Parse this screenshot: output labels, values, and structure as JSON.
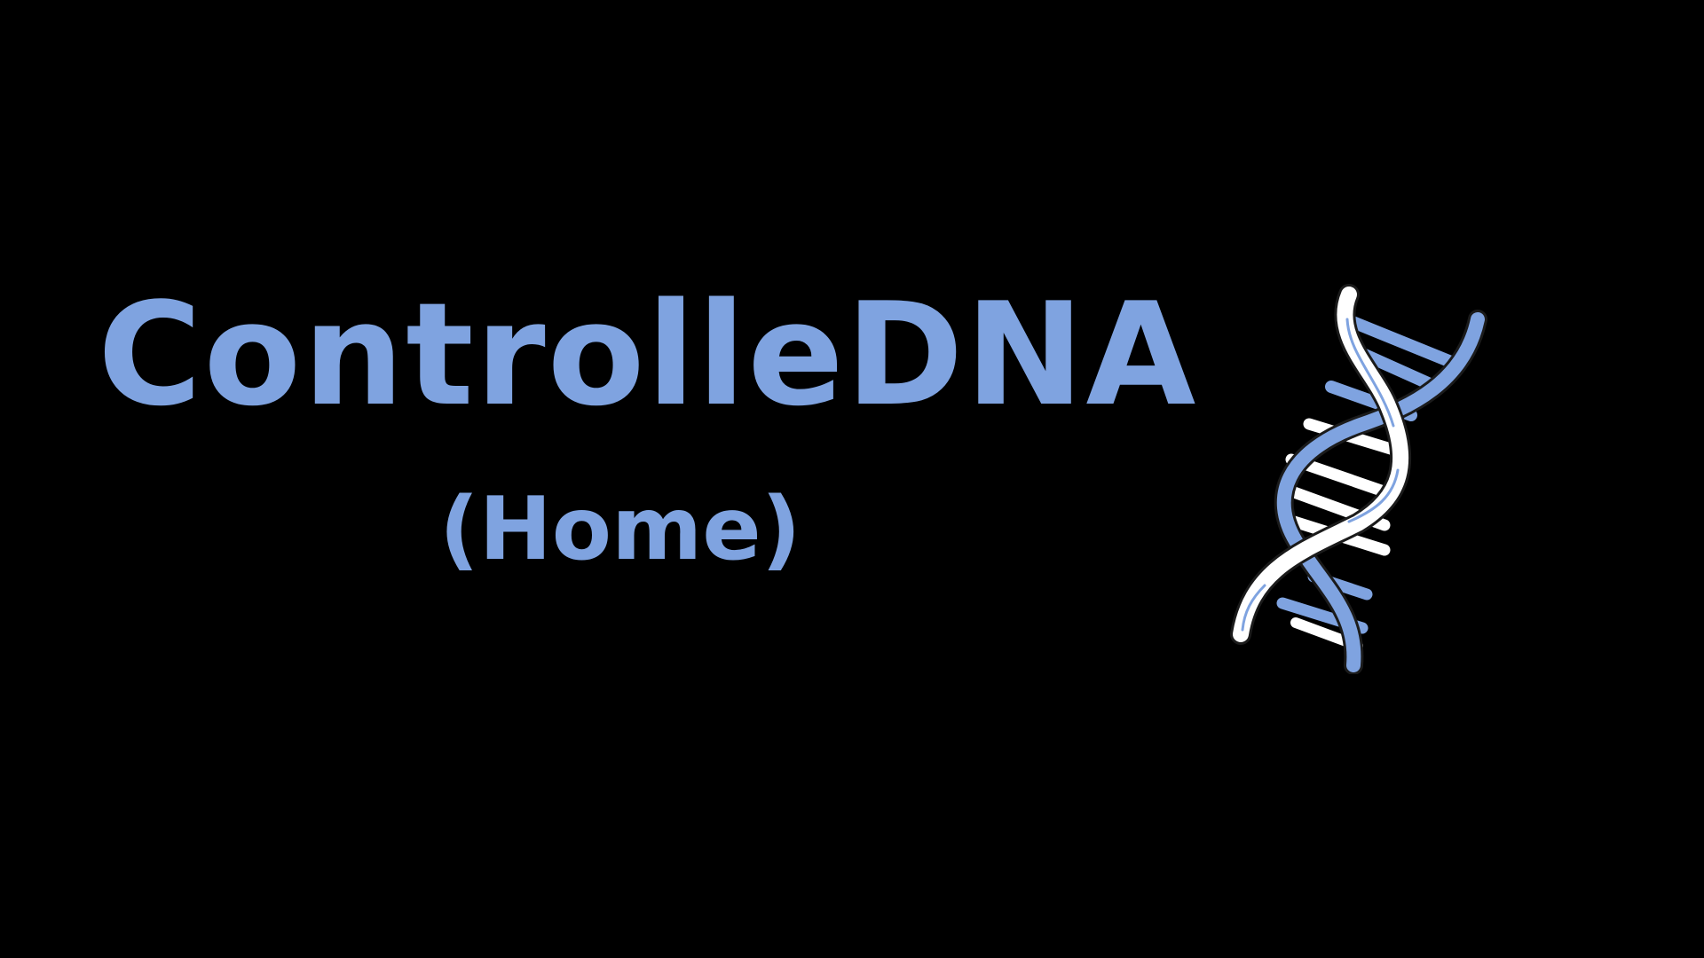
{
  "header": {
    "app_title": "ControlleDNA",
    "page_subtitle": "(Home)"
  },
  "logo": {
    "icon": "dna-helix-icon"
  },
  "colors": {
    "background": "#000000",
    "accent": "#7fa3e0",
    "strand_light": "#ffffff",
    "outline": "#1b1b1b"
  }
}
